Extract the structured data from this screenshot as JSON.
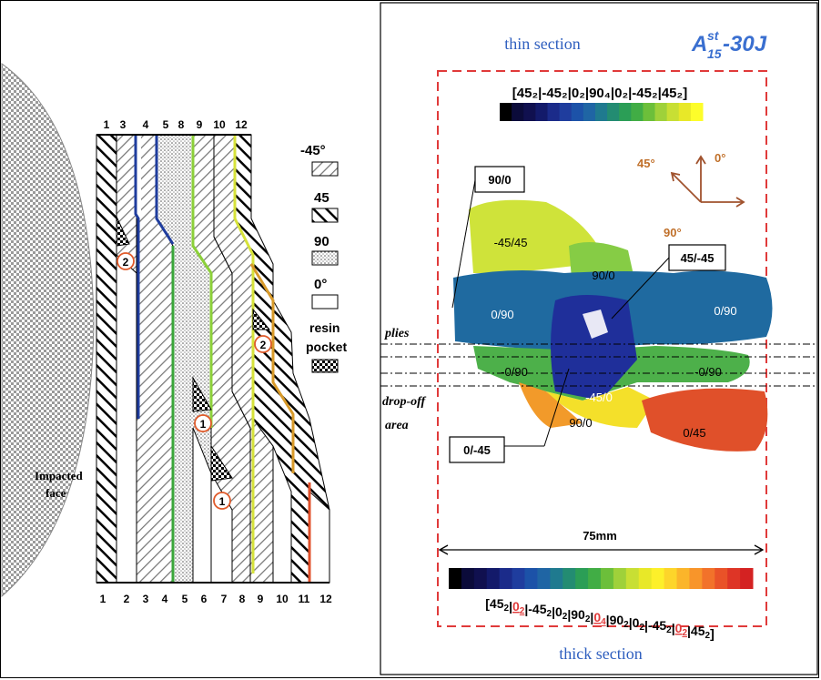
{
  "left_panel": {
    "top_ply_numbers": [
      "1",
      "3",
      "4",
      "5",
      "8",
      "9",
      "10",
      "12"
    ],
    "bottom_ply_numbers": [
      "1",
      "2",
      "3",
      "4",
      "5",
      "6",
      "7",
      "8",
      "9",
      "10",
      "11",
      "12"
    ],
    "impacted_face_line1": "Impacted",
    "impacted_face_line2": "face",
    "legend": {
      "minus45": "-45°",
      "plus45": "45",
      "ninety": "90",
      "zero": "0°",
      "resin_line1": "resin",
      "resin_line2": "pocket"
    },
    "markers": [
      "2",
      "2",
      "1",
      "1"
    ]
  },
  "right_panel": {
    "thin_section": "thin section",
    "specimen_main": "A",
    "specimen_sup": "st",
    "specimen_sub": "15",
    "specimen_suffix": " -30J",
    "thin_layup": "[45₂|-45₂|0₂|90₄|0₂|-45₂|45₂]",
    "thick_layup_parts": [
      {
        "text": "[45",
        "red": false
      },
      {
        "text": "2",
        "red": false,
        "sub": true
      },
      {
        "text": "|",
        "red": false
      },
      {
        "text": "0",
        "red": true
      },
      {
        "text": "2",
        "red": true,
        "sub": true
      },
      {
        "text": "|-45",
        "red": false
      },
      {
        "text": "2",
        "red": false,
        "sub": true
      },
      {
        "text": "|0",
        "red": false
      },
      {
        "text": "2",
        "red": false,
        "sub": true
      },
      {
        "text": "|90",
        "red": false
      },
      {
        "text": "2",
        "red": false,
        "sub": true
      },
      {
        "text": "|",
        "red": false
      },
      {
        "text": "0",
        "red": true
      },
      {
        "text": "4",
        "red": true,
        "sub": true
      },
      {
        "text": "|90",
        "red": false
      },
      {
        "text": "2",
        "red": false,
        "sub": true
      },
      {
        "text": "|0",
        "red": false
      },
      {
        "text": "2",
        "red": false,
        "sub": true
      },
      {
        "text": "|-45",
        "red": false
      },
      {
        "text": "2",
        "red": false,
        "sub": true
      },
      {
        "text": "|",
        "red": false
      },
      {
        "text": "0",
        "red": true
      },
      {
        "text": "2",
        "red": true,
        "sub": true
      },
      {
        "text": "|45",
        "red": false
      },
      {
        "text": "2",
        "red": false,
        "sub": true
      },
      {
        "text": "]",
        "red": false
      }
    ],
    "thick_section": "thick section",
    "dimension": "75mm",
    "plies_label": "plies",
    "dropoff_line1": "drop-off",
    "dropoff_line2": "area",
    "axes": {
      "a45": "45°",
      "a0": "0°",
      "a90": "90°"
    },
    "region_labels": {
      "r1": "-45/45",
      "r2": "90/0",
      "r3": "0/90",
      "r4": "0/90",
      "r5": "-0/90",
      "r6": "-0/90",
      "r7": "-45/0",
      "r8": "90/0",
      "r9": "0/45"
    },
    "callouts": {
      "c1": "90/0",
      "c2": "45/-45",
      "c3": "0/-45"
    },
    "thin_colorbar": [
      "#000000",
      "#0b0b3a",
      "#10104f",
      "#131a6a",
      "#1b2b8a",
      "#1f3d9e",
      "#1c52a8",
      "#1f65a4",
      "#1f7a8f",
      "#238c72",
      "#2b9e56",
      "#41ad45",
      "#6cbf3a",
      "#9fd13a",
      "#c8df34",
      "#e8e828",
      "#fdfd2a"
    ],
    "thick_colorbar": [
      "#000000",
      "#0b0b3a",
      "#10104f",
      "#131a6a",
      "#1b2b8a",
      "#1f3d9e",
      "#1c52a8",
      "#1f65a4",
      "#1f7a8f",
      "#238c72",
      "#2b9e56",
      "#41ad45",
      "#6cbf3a",
      "#9fd13a",
      "#c8df34",
      "#e8e828",
      "#fdf02a",
      "#fdd52a",
      "#fbb52a",
      "#f8952a",
      "#f2722a",
      "#e95228",
      "#de3526",
      "#d42222"
    ]
  }
}
